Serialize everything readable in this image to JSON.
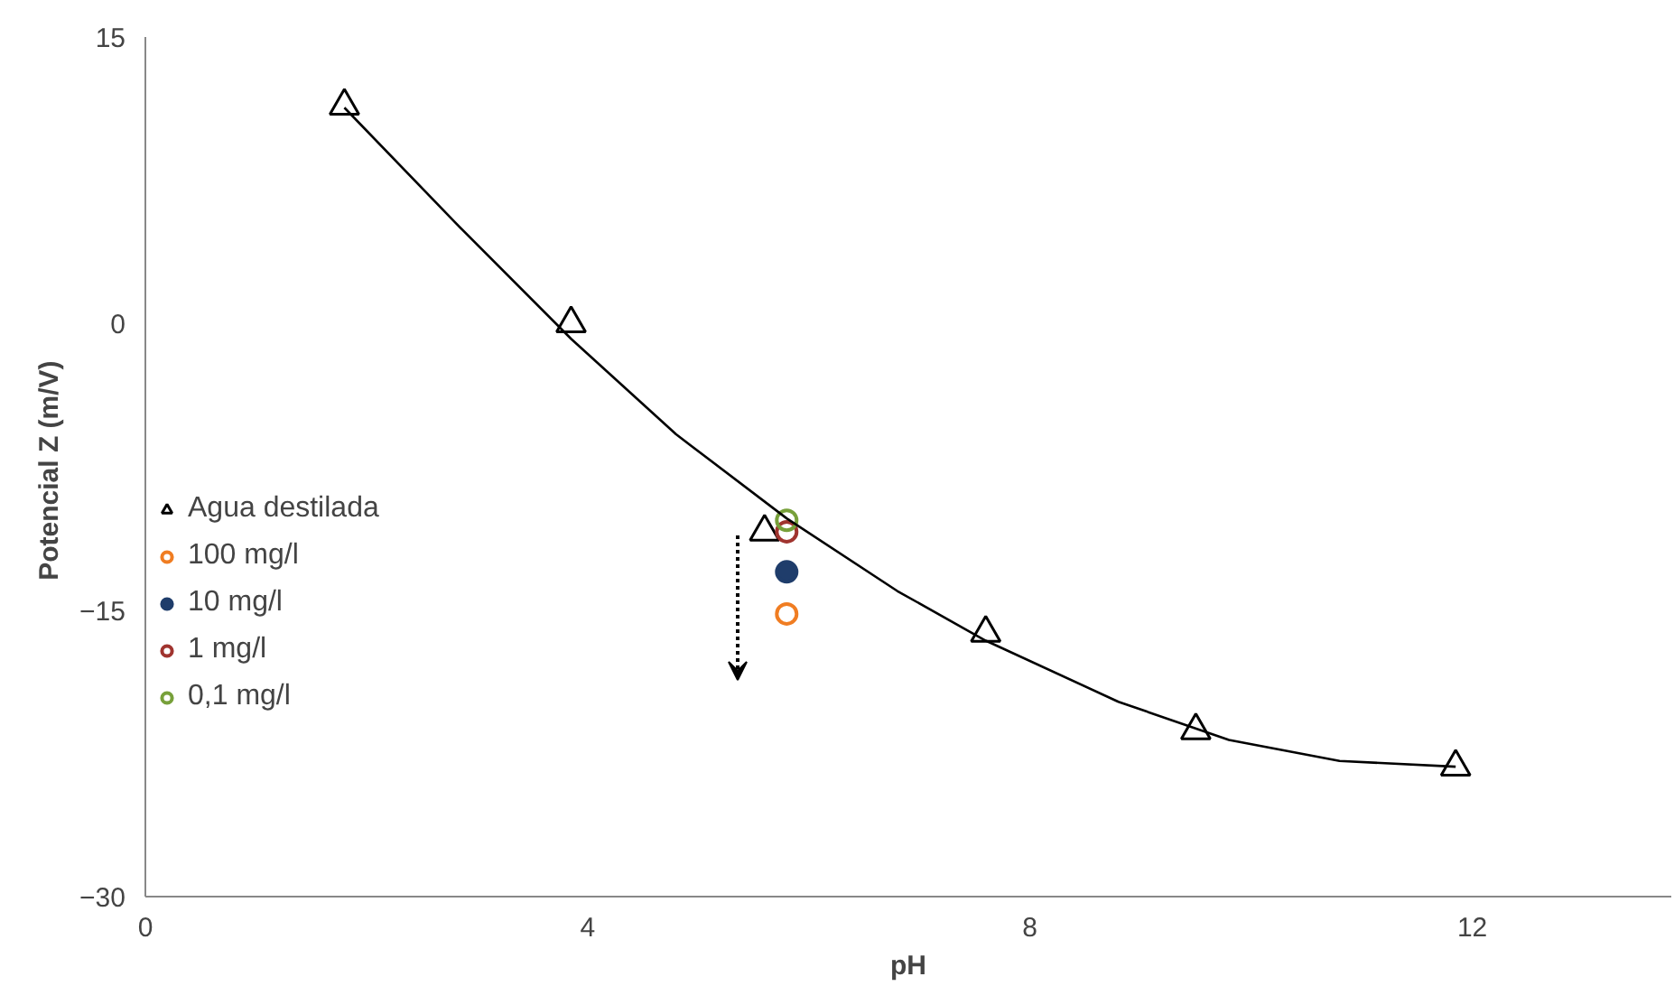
{
  "chart_data": {
    "type": "scatter",
    "xlabel": "pH",
    "ylabel": "Potencial Z  (m/V)",
    "xlim": [
      0,
      13.8
    ],
    "ylim": [
      -30,
      15
    ],
    "xticks": [
      0,
      4,
      8,
      12
    ],
    "yticks": [
      -30,
      -15,
      0,
      15
    ],
    "grid": false,
    "legend": "left",
    "series": [
      {
        "name": "Agua destilada",
        "color": "#000000",
        "marker": "triangle",
        "x": [
          1.8,
          3.85,
          5.6,
          7.6,
          9.5,
          11.85
        ],
        "values": [
          11.4,
          0,
          -10.9,
          -16.2,
          -21.3,
          -23.2
        ]
      },
      {
        "name": "100 mg/l",
        "color": "#f07d22",
        "marker": "circle",
        "x": [
          5.8
        ],
        "values": [
          -15.2
        ]
      },
      {
        "name": "10 mg/l",
        "color": "#1f3d6b",
        "marker": "circle",
        "x": [
          5.8
        ],
        "values": [
          -13.0
        ]
      },
      {
        "name": "1 mg/l",
        "color": "#a0342f",
        "marker": "circle",
        "x": [
          5.8
        ],
        "values": [
          -10.9
        ]
      },
      {
        "name": "0,1 mg/l",
        "color": "#77a03a",
        "marker": "circle",
        "x": [
          5.8
        ],
        "values": [
          -10.3
        ]
      },
      {
        "type": "line",
        "color": "#000000",
        "x": [
          1.8,
          2.8,
          3.85,
          4.8,
          5.8,
          6.8,
          7.6,
          8.8,
          9.8,
          10.8,
          11.85
        ],
        "values": [
          11.3,
          5.3,
          -0.8,
          -5.8,
          -10.2,
          -14.0,
          -16.6,
          -19.8,
          -21.8,
          -22.9,
          -23.2
        ]
      }
    ]
  }
}
